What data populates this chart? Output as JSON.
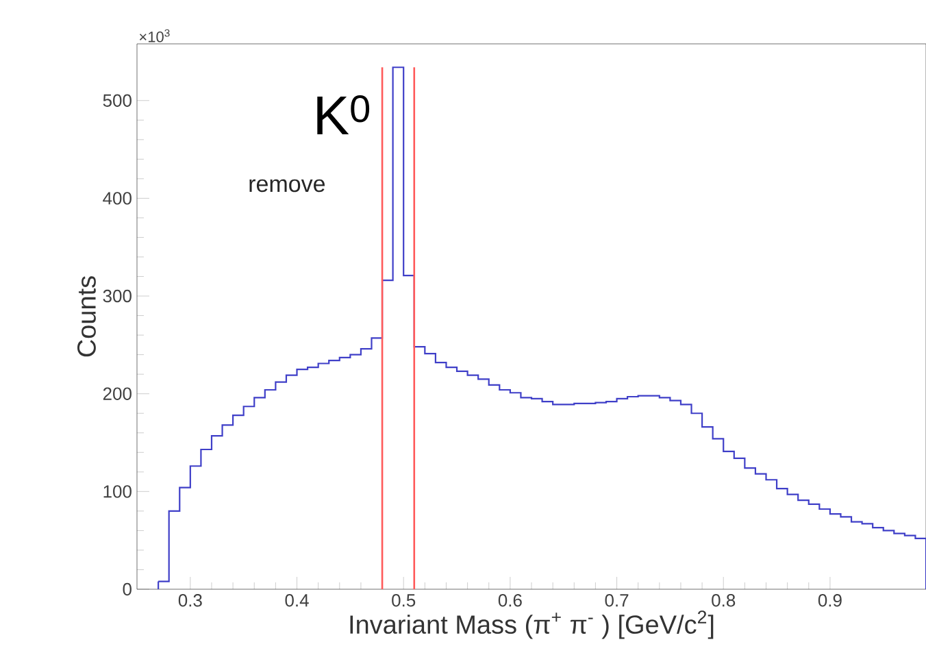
{
  "chart_data": {
    "type": "histogram",
    "xlabel": "Invariant Mass (π$^{+}$ π$^{-}$ ) [GeV/c$^{2}$]",
    "ylabel": "Counts",
    "annotations": [
      "K$^{0}$",
      "remove",
      "×10$^{3}$"
    ],
    "bins": [
      0.27,
      0.28,
      0.29,
      0.3,
      0.31,
      0.32,
      0.33,
      0.34,
      0.35,
      0.36,
      0.37,
      0.38,
      0.39,
      0.4,
      0.41,
      0.42,
      0.43,
      0.44,
      0.45,
      0.46,
      0.47,
      0.48,
      0.49,
      0.5,
      0.51,
      0.52,
      0.53,
      0.54,
      0.55,
      0.56,
      0.57,
      0.58,
      0.59,
      0.6,
      0.61,
      0.62,
      0.63,
      0.64,
      0.65,
      0.66,
      0.67,
      0.68,
      0.69,
      0.7,
      0.71,
      0.72,
      0.73,
      0.74,
      0.75,
      0.76,
      0.77,
      0.78,
      0.79,
      0.8,
      0.81,
      0.82,
      0.83,
      0.84,
      0.85,
      0.86,
      0.87,
      0.88,
      0.89,
      0.9,
      0.91,
      0.92,
      0.93,
      0.94,
      0.95,
      0.96,
      0.97,
      0.98,
      0.99
    ],
    "values": [
      8,
      80,
      104,
      126,
      143,
      157,
      168,
      178,
      187,
      196,
      204,
      212,
      219,
      225,
      227,
      231,
      234,
      237,
      240,
      246,
      257,
      316,
      534,
      321,
      248,
      241,
      232,
      227,
      223,
      219,
      215,
      209,
      204,
      201,
      196,
      195,
      192,
      189,
      189,
      190,
      190,
      191,
      192,
      195,
      197,
      198,
      198,
      196,
      193,
      189,
      180,
      166,
      154,
      141,
      134,
      124,
      118,
      112,
      103,
      97,
      91,
      87,
      82,
      77,
      74,
      69,
      67,
      63,
      60,
      57,
      55,
      52
    ],
    "color": "#3f3fc8",
    "ref_lines": [
      {
        "axis": "x",
        "value": 0.48,
        "color": "#ff5a5a"
      },
      {
        "axis": "x",
        "value": 0.51,
        "color": "#ff5a5a"
      }
    ],
    "xlim": [
      0.25,
      0.99
    ],
    "ylim": [
      0,
      558
    ],
    "xticks": [
      0.3,
      0.4,
      0.5,
      0.6,
      0.7,
      0.8,
      0.9
    ],
    "yticks": [
      0,
      100,
      200,
      300,
      400,
      500
    ],
    "grid": false
  }
}
